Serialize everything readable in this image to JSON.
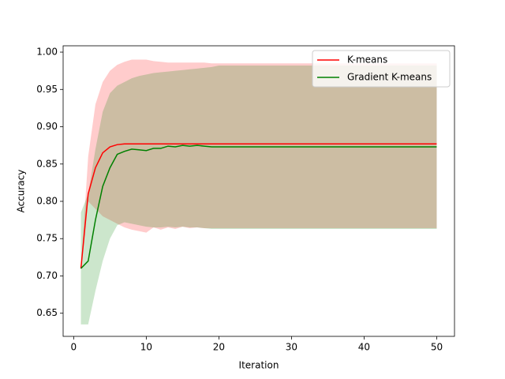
{
  "chart_data": {
    "type": "line-band",
    "xlabel": "Iteration",
    "ylabel": "Accuracy",
    "x": [
      1,
      2,
      3,
      4,
      5,
      6,
      7,
      8,
      9,
      10,
      11,
      12,
      13,
      14,
      15,
      16,
      17,
      18,
      19,
      20,
      21,
      22,
      23,
      24,
      25,
      26,
      27,
      28,
      29,
      30,
      31,
      32,
      33,
      34,
      35,
      36,
      37,
      38,
      39,
      40,
      41,
      42,
      43,
      44,
      45,
      46,
      47,
      48,
      49,
      50
    ],
    "xlim": [
      -1.45,
      52.45
    ],
    "xticks": [
      0,
      10,
      20,
      30,
      40,
      50
    ],
    "ylim": [
      0.619,
      1.0085
    ],
    "yticks": [
      {
        "value": 0.65,
        "label": "0.65"
      },
      {
        "value": 0.7,
        "label": "0.70"
      },
      {
        "value": 0.75,
        "label": "0.75"
      },
      {
        "value": 0.8,
        "label": "0.80"
      },
      {
        "value": 0.85,
        "label": "0.85"
      },
      {
        "value": 0.9,
        "label": "0.90"
      },
      {
        "value": 0.95,
        "label": "0.95"
      },
      {
        "value": 1.0,
        "label": "1.00"
      }
    ],
    "legend": "upper right",
    "series": [
      {
        "name": "K-means",
        "color": "#ff0000",
        "values": [
          0.71,
          0.81,
          0.845,
          0.865,
          0.873,
          0.876,
          0.877,
          0.877,
          0.877,
          0.877,
          0.877,
          0.877,
          0.877,
          0.877,
          0.877,
          0.877,
          0.877,
          0.877,
          0.877,
          0.877,
          0.877,
          0.877,
          0.877,
          0.877,
          0.877,
          0.877,
          0.877,
          0.877,
          0.877,
          0.877,
          0.877,
          0.877,
          0.877,
          0.877,
          0.877,
          0.877,
          0.877,
          0.877,
          0.877,
          0.877,
          0.877,
          0.877,
          0.877,
          0.877,
          0.877,
          0.877,
          0.877,
          0.877,
          0.877,
          0.877
        ],
        "lower": [
          0.71,
          0.8,
          0.79,
          0.78,
          0.775,
          0.77,
          0.765,
          0.762,
          0.76,
          0.758,
          0.765,
          0.762,
          0.765,
          0.763,
          0.766,
          0.764,
          0.765,
          0.764,
          0.764,
          0.764,
          0.764,
          0.764,
          0.764,
          0.764,
          0.764,
          0.764,
          0.764,
          0.764,
          0.764,
          0.764,
          0.764,
          0.764,
          0.764,
          0.764,
          0.764,
          0.764,
          0.764,
          0.764,
          0.764,
          0.764,
          0.764,
          0.764,
          0.764,
          0.764,
          0.764,
          0.764,
          0.764,
          0.764,
          0.764,
          0.764
        ],
        "upper": [
          0.71,
          0.86,
          0.93,
          0.96,
          0.975,
          0.983,
          0.987,
          0.99,
          0.99,
          0.99,
          0.988,
          0.987,
          0.986,
          0.986,
          0.986,
          0.986,
          0.986,
          0.986,
          0.985,
          0.985,
          0.985,
          0.985,
          0.985,
          0.985,
          0.985,
          0.985,
          0.985,
          0.985,
          0.985,
          0.985,
          0.985,
          0.985,
          0.985,
          0.985,
          0.985,
          0.985,
          0.985,
          0.985,
          0.985,
          0.985,
          0.985,
          0.985,
          0.985,
          0.985,
          0.985,
          0.985,
          0.985,
          0.985,
          0.985,
          0.985
        ]
      },
      {
        "name": "Gradient K-means",
        "color": "#008000",
        "values": [
          0.71,
          0.72,
          0.775,
          0.82,
          0.845,
          0.863,
          0.867,
          0.87,
          0.869,
          0.868,
          0.871,
          0.871,
          0.874,
          0.873,
          0.875,
          0.874,
          0.875,
          0.874,
          0.873,
          0.873,
          0.873,
          0.873,
          0.873,
          0.873,
          0.873,
          0.873,
          0.873,
          0.873,
          0.873,
          0.873,
          0.873,
          0.873,
          0.873,
          0.873,
          0.873,
          0.873,
          0.873,
          0.873,
          0.873,
          0.873,
          0.873,
          0.873,
          0.873,
          0.873,
          0.873,
          0.873,
          0.873,
          0.873,
          0.873,
          0.873
        ],
        "lower": [
          0.635,
          0.635,
          0.68,
          0.72,
          0.75,
          0.768,
          0.772,
          0.77,
          0.768,
          0.766,
          0.765,
          0.765,
          0.766,
          0.765,
          0.766,
          0.765,
          0.765,
          0.764,
          0.763,
          0.763,
          0.763,
          0.763,
          0.763,
          0.763,
          0.763,
          0.763,
          0.763,
          0.763,
          0.763,
          0.763,
          0.763,
          0.763,
          0.763,
          0.763,
          0.763,
          0.763,
          0.763,
          0.763,
          0.763,
          0.763,
          0.763,
          0.763,
          0.763,
          0.763,
          0.763,
          0.763,
          0.763,
          0.763,
          0.763,
          0.763
        ],
        "upper": [
          0.785,
          0.81,
          0.87,
          0.92,
          0.945,
          0.955,
          0.96,
          0.965,
          0.968,
          0.97,
          0.972,
          0.973,
          0.974,
          0.975,
          0.976,
          0.977,
          0.978,
          0.979,
          0.98,
          0.982,
          0.982,
          0.982,
          0.982,
          0.982,
          0.982,
          0.982,
          0.982,
          0.982,
          0.982,
          0.982,
          0.982,
          0.982,
          0.982,
          0.982,
          0.982,
          0.982,
          0.982,
          0.982,
          0.982,
          0.982,
          0.982,
          0.982,
          0.982,
          0.982,
          0.982,
          0.982,
          0.982,
          0.982,
          0.982,
          0.982
        ]
      }
    ]
  }
}
